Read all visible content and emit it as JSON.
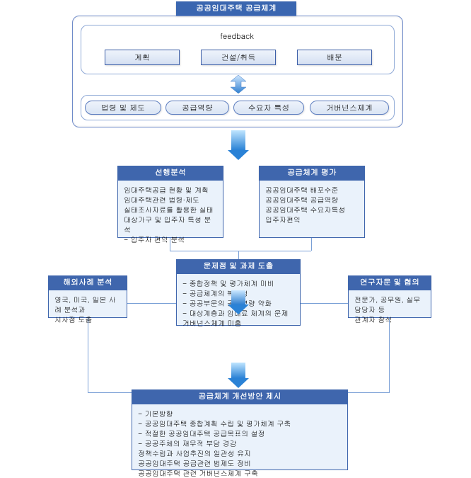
{
  "top_title": "공공임대주택 공급체계",
  "feedback_label": "feedback",
  "fb": {
    "plan": "계획",
    "build": "건설/취득",
    "dist": "배분"
  },
  "factors": {
    "f1": "법령 및 제도",
    "f2": "공급역량",
    "f3": "수요자 특성",
    "f4": "거버넌스체계"
  },
  "analysis": {
    "title": "선행분석",
    "items": [
      "임대주택공급 현황 및 계획",
      "임대주택관련 법령·제도",
      "실태조사자료를 활용한 실태",
      "대상가구 및 입주자 특성 분석",
      "- 입주자 편익 분석"
    ]
  },
  "evaluation": {
    "title": "공급체계 평가",
    "items": [
      "공공임대주택 배포수준",
      "공공임대주택 공급역량",
      "공공임대주택 수요자특성",
      "입주자편익"
    ]
  },
  "issues": {
    "title": "문제점 및 과제 도출",
    "items": [
      "- 종합정책 및 평가체계 미비",
      "- 공급체계의 복잡성",
      "- 공공부문의 공급역량 약화",
      "- 대상계층과 임대료 체계의 문제",
      "  거버넌스체계 미흡"
    ]
  },
  "cases": {
    "title": "해외사례 분석",
    "items": [
      "영국, 미국, 일본 사례 분석과",
      "시사점 도출"
    ]
  },
  "advice": {
    "title": "연구자문 및 협의",
    "items": [
      "전문가, 공무원, 실무담당자 등",
      "관계자 참석"
    ]
  },
  "final": {
    "title": "공급체계 개선방안 제시",
    "items": [
      "- 기본방향",
      "- 공공임대주택 종합계획 수립 및 평가체계 구축",
      "- 적절한 공공임대주택 공급목표의 설정",
      "- 공공주체의 재무적 부담 경감",
      "  정책수립과 사업추진의 일관성 유지",
      "  공공임대주택 공급관련 법제도 정비",
      "  공공임대주택 관련 거버넌스체계 구축"
    ]
  },
  "colors": {
    "headerBg": "#3f66ad",
    "boxBorder": "#3d5fa8",
    "bodyBg": "#eaf2fb",
    "outline": "#6f8bc9",
    "arrowLight": "#bfe5ff",
    "arrowDark": "#2a82d6"
  }
}
